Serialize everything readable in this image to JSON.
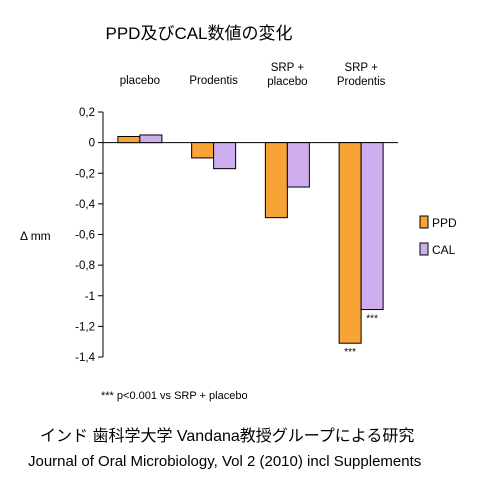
{
  "chart_data": {
    "type": "bar",
    "title": "PPD及びCAL数値の変化",
    "ylabel": "Δ mm",
    "xlabel": "",
    "ylim": [
      -1.4,
      0.2
    ],
    "yticks": [
      "0,2",
      "0",
      "-0,2",
      "-0,4",
      "-0,6",
      "-0,8",
      "-1",
      "-1,2",
      "-1,4"
    ],
    "ytick_values": [
      0.2,
      0,
      -0.2,
      -0.4,
      -0.6,
      -0.8,
      -1,
      -1.2,
      -1.4
    ],
    "categories": [
      [
        "placebo"
      ],
      [
        "Prodentis"
      ],
      [
        "SRP +",
        "placebo"
      ],
      [
        "SRP +",
        "Prodentis"
      ]
    ],
    "series": [
      {
        "name": "PPD",
        "values": [
          0.04,
          -0.1,
          -0.49,
          -1.31
        ],
        "color": "#f7a336"
      },
      {
        "name": "CAL",
        "values": [
          0.05,
          -0.17,
          -0.29,
          -1.09
        ],
        "color": "#cfaef0"
      }
    ],
    "annotations": [
      {
        "category": 3,
        "series": 0,
        "text": "***"
      },
      {
        "category": 3,
        "series": 1,
        "text": "***"
      }
    ],
    "legend": "right",
    "grid": false,
    "footnote": "*** p<0.001 vs SRP + placebo"
  },
  "source": {
    "line1": "インド 歯科学大学 Vandana教授グループによる研究",
    "line2": "Journal of Oral Microbiology, Vol 2 (2010) incl Supplements"
  }
}
